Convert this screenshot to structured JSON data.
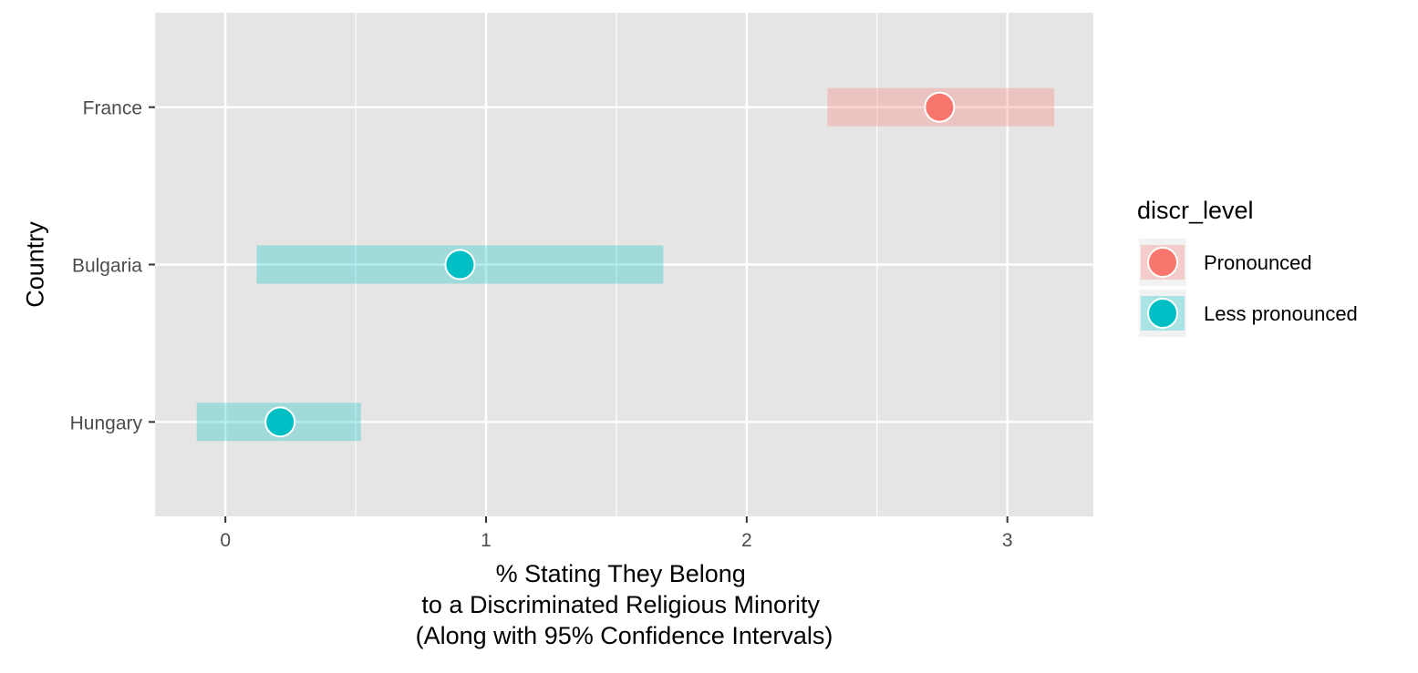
{
  "chart_data": {
    "type": "scatter",
    "title": "",
    "xlabel": [
      "% Stating They Belong",
      "to a Discriminated Religious Minority",
      "(Along with 95% Confidence Intervals)"
    ],
    "ylabel": "Country",
    "xlim": [
      -0.27,
      3.33
    ],
    "x_ticks": [
      {
        "value": 0,
        "label": "0"
      },
      {
        "value": 1,
        "label": "1"
      },
      {
        "value": 2,
        "label": "2"
      },
      {
        "value": 3,
        "label": "3"
      }
    ],
    "x_minor_gridlines": [
      0.5,
      1.5,
      2.5
    ],
    "categories": [
      "France",
      "Bulgaria",
      "Hungary"
    ],
    "grid": true,
    "legend": {
      "title": "discr_level",
      "placement": "right",
      "entries": [
        {
          "name": "Pronounced",
          "color": "#F8766D"
        },
        {
          "name": "Less pronounced",
          "color": "#00BFC4"
        }
      ]
    },
    "points": [
      {
        "category": "France",
        "x": 2.74,
        "low": 2.31,
        "high": 3.18,
        "group": "Pronounced"
      },
      {
        "category": "Bulgaria",
        "x": 0.9,
        "low": 0.12,
        "high": 1.68,
        "group": "Less pronounced"
      },
      {
        "category": "Hungary",
        "x": 0.21,
        "low": -0.11,
        "high": 0.52,
        "group": "Less pronounced"
      }
    ],
    "colors": {
      "panel_background": "#E5E5E5",
      "gridline": "#FFFFFF"
    }
  }
}
